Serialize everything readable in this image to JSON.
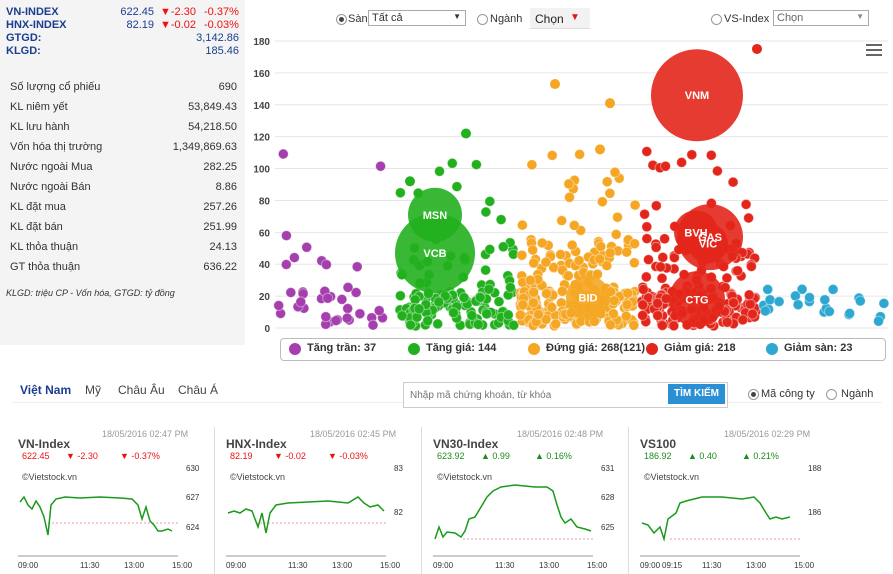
{
  "indices": [
    {
      "name": "VN-INDEX",
      "value": "622.45",
      "change": "▼-2.30",
      "pct": "-0.37%"
    },
    {
      "name": "HNX-INDEX",
      "value": "82.19",
      "change": "▼-0.02",
      "pct": "-0.03%"
    }
  ],
  "gtgd": {
    "label": "GTGD:",
    "value": "3,142.86"
  },
  "klgd": {
    "label": "KLGD:",
    "value": "185.46"
  },
  "stats": [
    {
      "label": "Số lượng cổ phiếu",
      "value": "690"
    },
    {
      "label": "KL niêm yết",
      "value": "53,849.43"
    },
    {
      "label": "KL lưu hành",
      "value": "54,218.50"
    },
    {
      "label": "Vốn hóa thị trường",
      "value": "1,349,869.63"
    },
    {
      "label": "Nước ngoài Mua",
      "value": "282.25"
    },
    {
      "label": "Nước ngoài Bán",
      "value": "8.86"
    },
    {
      "label": "KL đặt mua",
      "value": "257.26"
    },
    {
      "label": "KL đặt bán",
      "value": "251.99"
    },
    {
      "label": "KL thỏa thuận",
      "value": "24.13"
    },
    {
      "label": "GT thỏa thuận",
      "value": "636.22"
    }
  ],
  "note": "KLGD: triệu CP - Vốn hóa, GTGD: tỷ đồng",
  "controls": {
    "san_label": "Sàn",
    "san_value": "Tất cả",
    "nganh_label": "Ngành",
    "nganh_value": "Chọn",
    "vs_label": "VS-Index",
    "vs_value": "Chọn"
  },
  "chart_data": {
    "type": "scatter",
    "ylim": [
      0,
      180
    ],
    "yticks": [
      "0",
      "20",
      "40",
      "60",
      "80",
      "100",
      "120",
      "140",
      "160",
      "180"
    ],
    "groups": [
      {
        "name": "Tăng trần",
        "count": "37",
        "color": "#a43fad"
      },
      {
        "name": "Tăng giá",
        "count": "144",
        "color": "#22b01e"
      },
      {
        "name": "Đứng giá",
        "count": "268(121)",
        "color": "#f5a623"
      },
      {
        "name": "Giảm giá",
        "count": "218",
        "color": "#e3261b"
      },
      {
        "name": "Giảm sàn",
        "count": "23",
        "color": "#2ea8d0"
      }
    ],
    "bubbles": [
      {
        "label": "VNM",
        "y": 146,
        "group": "Giảm giá"
      },
      {
        "label": "MSN",
        "y": 71,
        "group": "Tăng giá"
      },
      {
        "label": "VCB",
        "y": 47,
        "group": "Tăng giá"
      },
      {
        "label": "BID",
        "y": 19,
        "group": "Đứng giá"
      },
      {
        "label": "BVH",
        "y": 60,
        "group": "Giảm giá"
      },
      {
        "label": "GAS",
        "y": 57,
        "group": "Giảm giá"
      },
      {
        "label": "VIC",
        "y": 53,
        "group": "Giảm giá"
      },
      {
        "label": "CTG",
        "y": 18,
        "group": "Giảm giá"
      }
    ]
  },
  "nav": {
    "tabs": [
      "Việt Nam",
      "Mỹ",
      "Châu Âu",
      "Châu Á"
    ]
  },
  "search": {
    "placeholder": "Nhập mã chứng khoán, từ khóa",
    "button": "TÌM KIẾM",
    "opt1": "Mã công ty",
    "opt2": "Ngành"
  },
  "minis": [
    {
      "title": "VN-Index",
      "time": "18/05/2016 02:47 PM",
      "value": "622.45",
      "change": "▼ -2.30",
      "pct": "▼ -0.37%",
      "dir": "down",
      "src": "©Vietstock.vn",
      "yticks": [
        "630",
        "627",
        "624"
      ],
      "xticks": [
        "09:00",
        "11:30",
        "13:00",
        "15:00"
      ]
    },
    {
      "title": "HNX-Index",
      "time": "18/05/2016 02:45 PM",
      "value": "82.19",
      "change": "▼ -0.02",
      "pct": "▼ -0.03%",
      "dir": "down",
      "src": "©Vietstock.vn",
      "yticks": [
        "83",
        "82"
      ],
      "xticks": [
        "09:00",
        "11:30",
        "13:00",
        "15:00"
      ]
    },
    {
      "title": "VN30-Index",
      "time": "18/05/2016 02:48 PM",
      "value": "623.92",
      "change": "▲ 0.99",
      "pct": "▲ 0.16%",
      "dir": "up",
      "src": "©Vietstock.vn",
      "yticks": [
        "631",
        "628",
        "625"
      ],
      "xticks": [
        "09:00",
        "11:30",
        "13:00",
        "15:00"
      ]
    },
    {
      "title": "VS100",
      "time": "18/05/2016 02:29 PM",
      "value": "186.92",
      "change": "▲ 0.40",
      "pct": "▲ 0.21%",
      "dir": "up",
      "src": "©Vietstock.vn",
      "yticks": [
        "188",
        "186"
      ],
      "xticks": [
        "09:00",
        "09:15",
        "11:30",
        "13:00",
        "15:00"
      ]
    }
  ]
}
